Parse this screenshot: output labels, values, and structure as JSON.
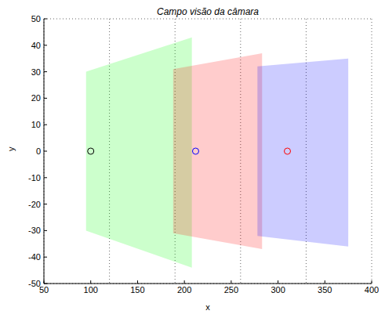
{
  "chart_data": {
    "type": "area",
    "title": "Campo visão da câmara",
    "x_label": "x",
    "y_label": "y",
    "xlim": [
      50,
      400
    ],
    "xticks": [
      50,
      100,
      150,
      200,
      250,
      300,
      350,
      400
    ],
    "ylim": [
      -50,
      50
    ],
    "yticks": [
      -50,
      -40,
      -30,
      -20,
      -10,
      0,
      10,
      20,
      30,
      40,
      50
    ],
    "grid": true,
    "series": [
      {
        "type": "area",
        "color": "#00ff00",
        "x": [
          95,
          208
        ],
        "values": [
          [
            -30,
            30
          ],
          [
            -44,
            43
          ]
        ]
      },
      {
        "type": "area",
        "color": "#ff0000",
        "x": [
          188,
          283
        ],
        "values": [
          [
            -31,
            31
          ],
          [
            -37,
            37
          ]
        ]
      },
      {
        "type": "area",
        "color": "#0000ff",
        "x": [
          278,
          375
        ],
        "values": [
          [
            -32,
            32
          ],
          [
            -36,
            35
          ]
        ]
      },
      {
        "type": "scatter",
        "marker": "circle",
        "color": "#000000",
        "x": [
          100
        ],
        "values": [
          0
        ]
      },
      {
        "type": "scatter",
        "marker": "circle",
        "color": "#0000ff",
        "x": [
          212
        ],
        "values": [
          0
        ]
      },
      {
        "type": "scatter",
        "marker": "circle",
        "color": "#ff0000",
        "x": [
          310
        ],
        "values": [
          0
        ]
      }
    ]
  }
}
